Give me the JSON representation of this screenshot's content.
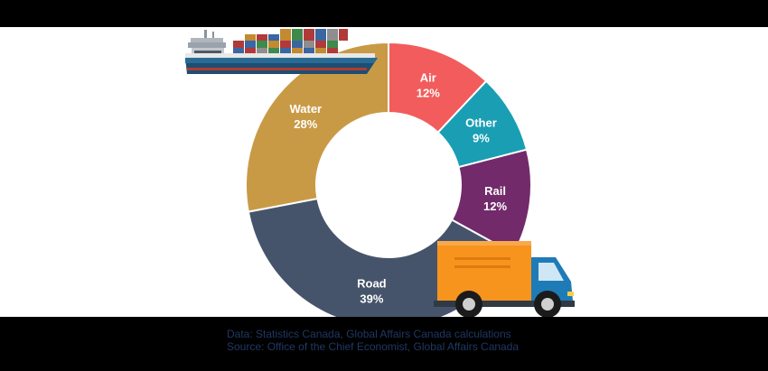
{
  "chart_data": {
    "type": "pie",
    "style": "donut",
    "categories": [
      "Air",
      "Other",
      "Rail",
      "Road",
      "Water"
    ],
    "values": [
      12,
      9,
      12,
      39,
      28
    ],
    "labels": [
      "12%",
      "9%",
      "12%",
      "39%",
      "28%"
    ],
    "colors": [
      "#f25c5c",
      "#1a9eb3",
      "#722a6b",
      "#46546b",
      "#c99a45"
    ],
    "legend": "none"
  },
  "footer": {
    "data_line": "Data: Statistics Canada, Global Affairs Canada calculations",
    "source_line": "Source: Office of the Chief Economist, Global Affairs Canada"
  },
  "illustrations": {
    "ship_icon": "cargo-ship-icon",
    "truck_icon": "delivery-truck-icon"
  }
}
